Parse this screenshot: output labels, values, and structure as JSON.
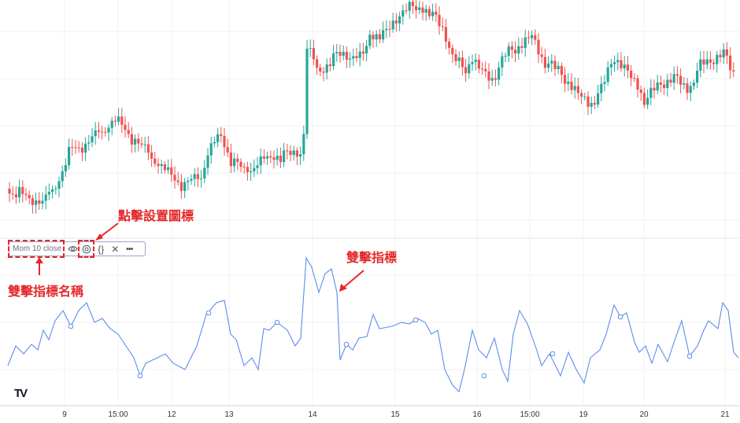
{
  "indicator": {
    "name": "Mom 10 close",
    "controls": [
      "eye-icon",
      "settings-icon",
      "source-code-icon",
      "close-icon",
      "more-icon"
    ]
  },
  "annotations": {
    "settings": "點擊設置圖標",
    "name": "雙擊指標名稱",
    "indicator": "雙擊指標"
  },
  "x_axis": [
    "9",
    "15:00",
    "12",
    "13",
    "14",
    "15",
    "16",
    "15:00",
    "19",
    "20",
    "21"
  ],
  "logo": "TV",
  "colors": {
    "up": "#26a69a",
    "down": "#ef5350",
    "line": "#5b8def",
    "annotation": "#e5282a"
  }
}
